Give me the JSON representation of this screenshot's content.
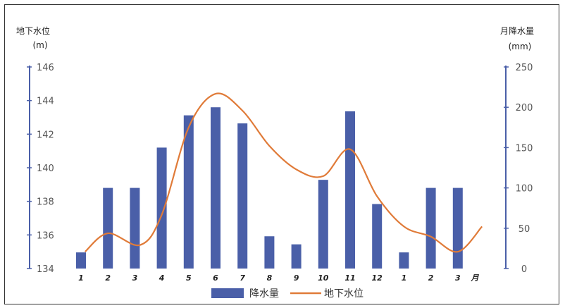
{
  "chart_data": {
    "type": "bar+line",
    "categories": [
      "1",
      "2",
      "3",
      "4",
      "5",
      "6",
      "7",
      "8",
      "9",
      "10",
      "11",
      "12",
      "1",
      "2",
      "3"
    ],
    "x_unit": "月",
    "left_axis": {
      "title": "地下水位",
      "unit": "(m)",
      "ylim": [
        134,
        146
      ],
      "ticks": [
        134,
        136,
        138,
        140,
        142,
        144,
        146
      ]
    },
    "right_axis": {
      "title": "月降水量",
      "unit": "(mm)",
      "ylim": [
        0,
        250
      ],
      "ticks": [
        0,
        50,
        100,
        150,
        200,
        250
      ]
    },
    "series": [
      {
        "name": "降水量",
        "type": "bar",
        "axis": "right",
        "color": "#4a5fa8",
        "values": [
          20,
          100,
          100,
          150,
          190,
          200,
          180,
          40,
          30,
          110,
          195,
          80,
          20,
          100,
          100
        ]
      },
      {
        "name": "地下水位",
        "type": "line",
        "axis": "left",
        "color": "#e07b39",
        "x": [
          1.15,
          2,
          3.2,
          4,
          5,
          6,
          7,
          8,
          9,
          10,
          11,
          12,
          13,
          14,
          15,
          15.9
        ],
        "values": [
          135.0,
          136.1,
          135.4,
          137.2,
          142.4,
          144.4,
          143.4,
          141.3,
          139.9,
          139.5,
          141.1,
          138.3,
          136.5,
          135.9,
          135.0,
          136.5
        ]
      }
    ],
    "legend": {
      "position": "bottom"
    }
  }
}
